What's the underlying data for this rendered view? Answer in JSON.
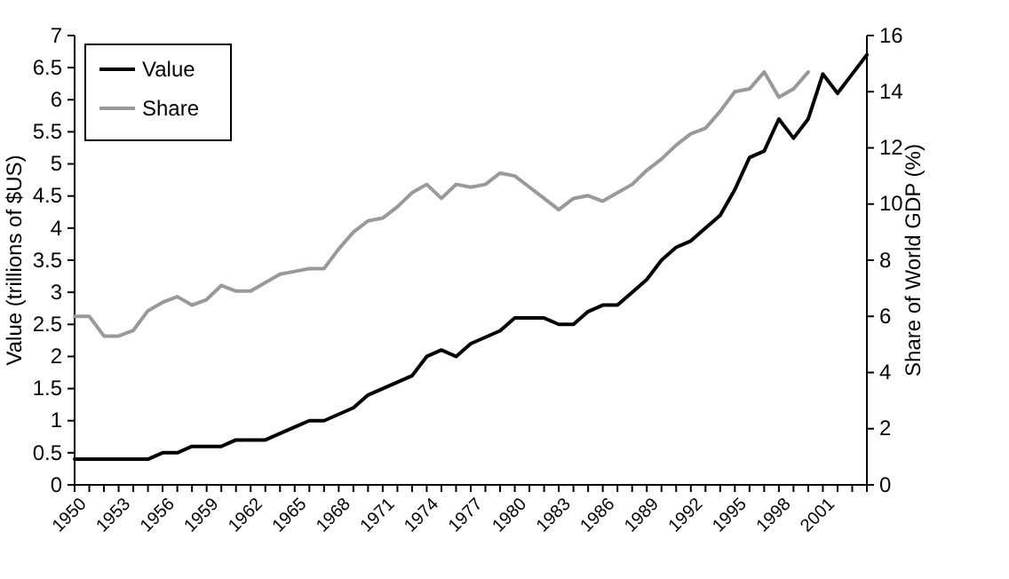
{
  "chart_data": {
    "type": "line",
    "xlabel": null,
    "ylabel": "Value (trillions of $US)",
    "y2label": "Share of World GDP (%)",
    "x": [
      1950,
      1951,
      1952,
      1953,
      1954,
      1955,
      1956,
      1957,
      1958,
      1959,
      1960,
      1961,
      1962,
      1963,
      1964,
      1965,
      1966,
      1967,
      1968,
      1969,
      1970,
      1971,
      1972,
      1973,
      1974,
      1975,
      1976,
      1977,
      1978,
      1979,
      1980,
      1981,
      1982,
      1983,
      1984,
      1985,
      1986,
      1987,
      1988,
      1989,
      1990,
      1991,
      1992,
      1993,
      1994,
      1995,
      1996,
      1997,
      1998,
      1999,
      2000,
      2001,
      2002,
      2003,
      2004
    ],
    "series": [
      {
        "name": "Value",
        "color": "#000000",
        "values": [
          0.4,
          0.4,
          0.4,
          0.4,
          0.4,
          0.4,
          0.5,
          0.5,
          0.6,
          0.6,
          0.6,
          0.7,
          0.7,
          0.7,
          0.8,
          0.9,
          1.0,
          1.0,
          1.1,
          1.2,
          1.4,
          1.5,
          1.6,
          1.7,
          2.0,
          2.1,
          2.0,
          2.2,
          2.3,
          2.4,
          2.6,
          2.6,
          2.6,
          2.5,
          2.5,
          2.7,
          2.8,
          2.8,
          3.0,
          3.2,
          3.5,
          3.7,
          3.8,
          4.0,
          4.2,
          4.6,
          5.1,
          5.2,
          5.7,
          5.4,
          5.7,
          6.4,
          6.1,
          6.4,
          6.7
        ]
      },
      {
        "name": "Share",
        "color": "#999999",
        "axis": "y2",
        "values": [
          6.0,
          6.0,
          5.3,
          5.3,
          5.5,
          6.2,
          6.5,
          6.7,
          6.4,
          6.6,
          7.1,
          6.9,
          6.9,
          7.2,
          7.5,
          7.6,
          7.7,
          7.7,
          8.4,
          9.0,
          9.4,
          9.5,
          9.9,
          10.4,
          10.7,
          10.2,
          10.7,
          10.6,
          10.7,
          11.1,
          11.0,
          10.6,
          10.2,
          9.8,
          10.2,
          10.3,
          10.1,
          10.4,
          10.7,
          11.2,
          11.6,
          12.1,
          12.5,
          12.7,
          13.3,
          14.0,
          14.1,
          14.7,
          13.8,
          14.1,
          14.7,
          null,
          null,
          null,
          null
        ]
      }
    ],
    "xlim": [
      1950,
      2004
    ],
    "xticks": [
      1950,
      {
        "value": 1951,
        "label": null
      },
      {
        "value": 1952,
        "label": null
      },
      1953,
      {
        "value": 1954,
        "label": null
      },
      {
        "value": 1955,
        "label": null
      },
      1956,
      {
        "value": 1957,
        "label": null
      },
      {
        "value": 1958,
        "label": null
      },
      1959,
      {
        "value": 1960,
        "label": null
      },
      {
        "value": 1961,
        "label": null
      },
      1962,
      {
        "value": 1963,
        "label": null
      },
      {
        "value": 1964,
        "label": null
      },
      1965,
      {
        "value": 1966,
        "label": null
      },
      {
        "value": 1967,
        "label": null
      },
      1968,
      {
        "value": 1969,
        "label": null
      },
      {
        "value": 1970,
        "label": null
      },
      1971,
      {
        "value": 1972,
        "label": null
      },
      {
        "value": 1973,
        "label": null
      },
      1974,
      {
        "value": 1975,
        "label": null
      },
      {
        "value": 1976,
        "label": null
      },
      1977,
      {
        "value": 1978,
        "label": null
      },
      {
        "value": 1979,
        "label": null
      },
      1980,
      {
        "value": 1981,
        "label": null
      },
      {
        "value": 1982,
        "label": null
      },
      1983,
      {
        "value": 1984,
        "label": null
      },
      {
        "value": 1985,
        "label": null
      },
      1986,
      {
        "value": 1987,
        "label": null
      },
      {
        "value": 1988,
        "label": null
      },
      1989,
      {
        "value": 1990,
        "label": null
      },
      {
        "value": 1991,
        "label": null
      },
      1992,
      {
        "value": 1993,
        "label": null
      },
      {
        "value": 1994,
        "label": null
      },
      1995,
      {
        "value": 1996,
        "label": null
      },
      {
        "value": 1997,
        "label": null
      },
      1998,
      {
        "value": 1999,
        "label": null
      },
      {
        "value": 2000,
        "label": null
      },
      2001,
      {
        "value": 2002,
        "label": null
      },
      {
        "value": 2003,
        "label": null
      },
      {
        "value": 2004,
        "label": null
      }
    ],
    "ylim": [
      0,
      7
    ],
    "yticks": [
      0,
      0.5,
      1,
      1.5,
      2,
      2.5,
      3,
      3.5,
      4,
      4.5,
      5,
      5.5,
      6,
      6.5,
      7
    ],
    "y2lim": [
      0,
      16
    ],
    "y2ticks": [
      0,
      2,
      4,
      6,
      8,
      10,
      12,
      14,
      16
    ],
    "grid": false,
    "legend": "top left",
    "line_style": "solid",
    "marker": "none"
  }
}
